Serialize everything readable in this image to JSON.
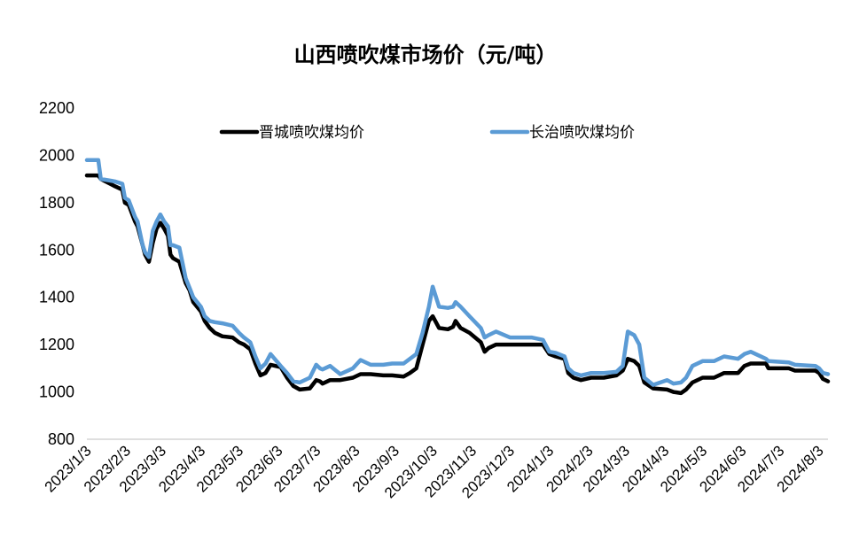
{
  "chart_data": {
    "type": "line",
    "title": "山西喷吹煤市场价（元/吨）",
    "ylim": [
      800,
      2200
    ],
    "yticks": [
      "800",
      "1000",
      "1200",
      "1400",
      "1600",
      "1800",
      "2000",
      "2200"
    ],
    "xticks": [
      "2023/1/3",
      "2023/2/3",
      "2023/3/3",
      "2023/4/3",
      "2023/5/3",
      "2023/6/3",
      "2023/7/3",
      "2023/8/3",
      "2023/9/3",
      "2023/10/3",
      "2023/11/3",
      "2023/12/3",
      "2024/1/3",
      "2024/2/3",
      "2024/3/3",
      "2024/4/3",
      "2024/5/3",
      "2024/6/3",
      "2024/7/3",
      "2024/8/3"
    ],
    "xrange": [
      "2023-01-03",
      "2024-08-10"
    ],
    "legend_position": "top",
    "series": [
      {
        "name": "晋城喷吹煤均价",
        "color": "#000000",
        "points": [
          [
            "2023-01-03",
            1915
          ],
          [
            "2023-01-12",
            1915
          ],
          [
            "2023-01-14",
            1900
          ],
          [
            "2023-01-25",
            1870
          ],
          [
            "2023-01-31",
            1855
          ],
          [
            "2023-02-02",
            1800
          ],
          [
            "2023-02-05",
            1790
          ],
          [
            "2023-02-10",
            1720
          ],
          [
            "2023-02-12",
            1700
          ],
          [
            "2023-02-16",
            1620
          ],
          [
            "2023-02-18",
            1580
          ],
          [
            "2023-02-21",
            1550
          ],
          [
            "2023-02-24",
            1630
          ],
          [
            "2023-02-27",
            1690
          ],
          [
            "2023-03-02",
            1715
          ],
          [
            "2023-03-05",
            1690
          ],
          [
            "2023-03-08",
            1660
          ],
          [
            "2023-03-10",
            1580
          ],
          [
            "2023-03-12",
            1565
          ],
          [
            "2023-03-17",
            1550
          ],
          [
            "2023-03-22",
            1460
          ],
          [
            "2023-03-25",
            1430
          ],
          [
            "2023-03-28",
            1380
          ],
          [
            "2023-04-03",
            1340
          ],
          [
            "2023-04-06",
            1300
          ],
          [
            "2023-04-10",
            1270
          ],
          [
            "2023-04-14",
            1250
          ],
          [
            "2023-04-20",
            1235
          ],
          [
            "2023-04-28",
            1230
          ],
          [
            "2023-05-03",
            1210
          ],
          [
            "2023-05-07",
            1200
          ],
          [
            "2023-05-12",
            1180
          ],
          [
            "2023-05-16",
            1120
          ],
          [
            "2023-05-20",
            1070
          ],
          [
            "2023-05-24",
            1080
          ],
          [
            "2023-05-28",
            1115
          ],
          [
            "2023-06-05",
            1105
          ],
          [
            "2023-06-10",
            1060
          ],
          [
            "2023-06-15",
            1025
          ],
          [
            "2023-06-20",
            1010
          ],
          [
            "2023-06-28",
            1015
          ],
          [
            "2023-07-03",
            1050
          ],
          [
            "2023-07-06",
            1045
          ],
          [
            "2023-07-08",
            1035
          ],
          [
            "2023-07-14",
            1050
          ],
          [
            "2023-07-22",
            1050
          ],
          [
            "2023-08-01",
            1060
          ],
          [
            "2023-08-07",
            1075
          ],
          [
            "2023-08-15",
            1075
          ],
          [
            "2023-08-25",
            1070
          ],
          [
            "2023-09-01",
            1070
          ],
          [
            "2023-09-10",
            1065
          ],
          [
            "2023-09-15",
            1080
          ],
          [
            "2023-09-20",
            1100
          ],
          [
            "2023-09-25",
            1200
          ],
          [
            "2023-09-30",
            1300
          ],
          [
            "2023-10-03",
            1320
          ],
          [
            "2023-10-08",
            1270
          ],
          [
            "2023-10-15",
            1265
          ],
          [
            "2023-10-19",
            1275
          ],
          [
            "2023-10-21",
            1300
          ],
          [
            "2023-10-25",
            1270
          ],
          [
            "2023-11-01",
            1250
          ],
          [
            "2023-11-10",
            1210
          ],
          [
            "2023-11-13",
            1170
          ],
          [
            "2023-11-16",
            1185
          ],
          [
            "2023-11-22",
            1200
          ],
          [
            "2023-12-03",
            1200
          ],
          [
            "2023-12-20",
            1200
          ],
          [
            "2023-12-29",
            1200
          ],
          [
            "2024-01-03",
            1160
          ],
          [
            "2024-01-08",
            1150
          ],
          [
            "2024-01-15",
            1140
          ],
          [
            "2024-01-18",
            1080
          ],
          [
            "2024-01-22",
            1060
          ],
          [
            "2024-01-28",
            1050
          ],
          [
            "2024-02-05",
            1060
          ],
          [
            "2024-02-15",
            1060
          ],
          [
            "2024-02-25",
            1070
          ],
          [
            "2024-03-01",
            1090
          ],
          [
            "2024-03-05",
            1140
          ],
          [
            "2024-03-10",
            1130
          ],
          [
            "2024-03-14",
            1110
          ],
          [
            "2024-03-18",
            1040
          ],
          [
            "2024-03-25",
            1015
          ],
          [
            "2024-04-05",
            1010
          ],
          [
            "2024-04-10",
            1000
          ],
          [
            "2024-04-16",
            995
          ],
          [
            "2024-04-20",
            1010
          ],
          [
            "2024-04-25",
            1040
          ],
          [
            "2024-05-03",
            1060
          ],
          [
            "2024-05-12",
            1060
          ],
          [
            "2024-05-20",
            1080
          ],
          [
            "2024-05-31",
            1080
          ],
          [
            "2024-06-05",
            1110
          ],
          [
            "2024-06-10",
            1120
          ],
          [
            "2024-06-22",
            1120
          ],
          [
            "2024-06-24",
            1100
          ],
          [
            "2024-07-10",
            1100
          ],
          [
            "2024-07-15",
            1090
          ],
          [
            "2024-07-31",
            1090
          ],
          [
            "2024-08-03",
            1080
          ],
          [
            "2024-08-06",
            1055
          ],
          [
            "2024-08-10",
            1045
          ]
        ]
      },
      {
        "name": "长治喷吹煤均价",
        "color": "#5B9BD5",
        "points": [
          [
            "2023-01-03",
            1980
          ],
          [
            "2023-01-12",
            1980
          ],
          [
            "2023-01-14",
            1900
          ],
          [
            "2023-01-25",
            1890
          ],
          [
            "2023-01-31",
            1880
          ],
          [
            "2023-02-02",
            1820
          ],
          [
            "2023-02-05",
            1810
          ],
          [
            "2023-02-10",
            1740
          ],
          [
            "2023-02-12",
            1720
          ],
          [
            "2023-02-16",
            1620
          ],
          [
            "2023-02-18",
            1590
          ],
          [
            "2023-02-21",
            1570
          ],
          [
            "2023-02-24",
            1680
          ],
          [
            "2023-02-27",
            1720
          ],
          [
            "2023-03-02",
            1750
          ],
          [
            "2023-03-05",
            1720
          ],
          [
            "2023-03-08",
            1700
          ],
          [
            "2023-03-10",
            1620
          ],
          [
            "2023-03-12",
            1620
          ],
          [
            "2023-03-17",
            1610
          ],
          [
            "2023-03-22",
            1480
          ],
          [
            "2023-03-25",
            1440
          ],
          [
            "2023-03-28",
            1400
          ],
          [
            "2023-04-03",
            1360
          ],
          [
            "2023-04-06",
            1320
          ],
          [
            "2023-04-10",
            1300
          ],
          [
            "2023-04-14",
            1295
          ],
          [
            "2023-04-20",
            1290
          ],
          [
            "2023-04-28",
            1280
          ],
          [
            "2023-05-03",
            1250
          ],
          [
            "2023-05-07",
            1230
          ],
          [
            "2023-05-12",
            1210
          ],
          [
            "2023-05-16",
            1150
          ],
          [
            "2023-05-20",
            1100
          ],
          [
            "2023-05-24",
            1120
          ],
          [
            "2023-05-28",
            1160
          ],
          [
            "2023-06-05",
            1110
          ],
          [
            "2023-06-10",
            1080
          ],
          [
            "2023-06-15",
            1045
          ],
          [
            "2023-06-20",
            1040
          ],
          [
            "2023-06-28",
            1060
          ],
          [
            "2023-07-03",
            1115
          ],
          [
            "2023-07-06",
            1100
          ],
          [
            "2023-07-08",
            1095
          ],
          [
            "2023-07-14",
            1110
          ],
          [
            "2023-07-22",
            1075
          ],
          [
            "2023-08-01",
            1100
          ],
          [
            "2023-08-07",
            1135
          ],
          [
            "2023-08-15",
            1115
          ],
          [
            "2023-08-25",
            1115
          ],
          [
            "2023-09-01",
            1120
          ],
          [
            "2023-09-10",
            1120
          ],
          [
            "2023-09-15",
            1140
          ],
          [
            "2023-09-20",
            1160
          ],
          [
            "2023-09-25",
            1250
          ],
          [
            "2023-09-30",
            1360
          ],
          [
            "2023-10-03",
            1445
          ],
          [
            "2023-10-08",
            1360
          ],
          [
            "2023-10-15",
            1355
          ],
          [
            "2023-10-19",
            1360
          ],
          [
            "2023-10-21",
            1380
          ],
          [
            "2023-10-25",
            1360
          ],
          [
            "2023-11-01",
            1320
          ],
          [
            "2023-11-10",
            1270
          ],
          [
            "2023-11-13",
            1230
          ],
          [
            "2023-11-16",
            1240
          ],
          [
            "2023-11-22",
            1255
          ],
          [
            "2023-12-03",
            1230
          ],
          [
            "2023-12-20",
            1230
          ],
          [
            "2023-12-29",
            1220
          ],
          [
            "2024-01-03",
            1170
          ],
          [
            "2024-01-08",
            1165
          ],
          [
            "2024-01-15",
            1150
          ],
          [
            "2024-01-18",
            1100
          ],
          [
            "2024-01-22",
            1080
          ],
          [
            "2024-01-28",
            1070
          ],
          [
            "2024-02-05",
            1080
          ],
          [
            "2024-02-15",
            1080
          ],
          [
            "2024-02-25",
            1085
          ],
          [
            "2024-03-01",
            1110
          ],
          [
            "2024-03-05",
            1255
          ],
          [
            "2024-03-10",
            1240
          ],
          [
            "2024-03-14",
            1200
          ],
          [
            "2024-03-18",
            1060
          ],
          [
            "2024-03-25",
            1030
          ],
          [
            "2024-04-05",
            1050
          ],
          [
            "2024-04-10",
            1035
          ],
          [
            "2024-04-16",
            1040
          ],
          [
            "2024-04-20",
            1060
          ],
          [
            "2024-04-25",
            1110
          ],
          [
            "2024-05-03",
            1130
          ],
          [
            "2024-05-12",
            1130
          ],
          [
            "2024-05-20",
            1150
          ],
          [
            "2024-05-31",
            1140
          ],
          [
            "2024-06-05",
            1160
          ],
          [
            "2024-06-10",
            1170
          ],
          [
            "2024-06-22",
            1140
          ],
          [
            "2024-06-24",
            1130
          ],
          [
            "2024-07-10",
            1125
          ],
          [
            "2024-07-15",
            1115
          ],
          [
            "2024-07-31",
            1110
          ],
          [
            "2024-08-03",
            1100
          ],
          [
            "2024-08-06",
            1080
          ],
          [
            "2024-08-10",
            1075
          ]
        ]
      }
    ]
  }
}
